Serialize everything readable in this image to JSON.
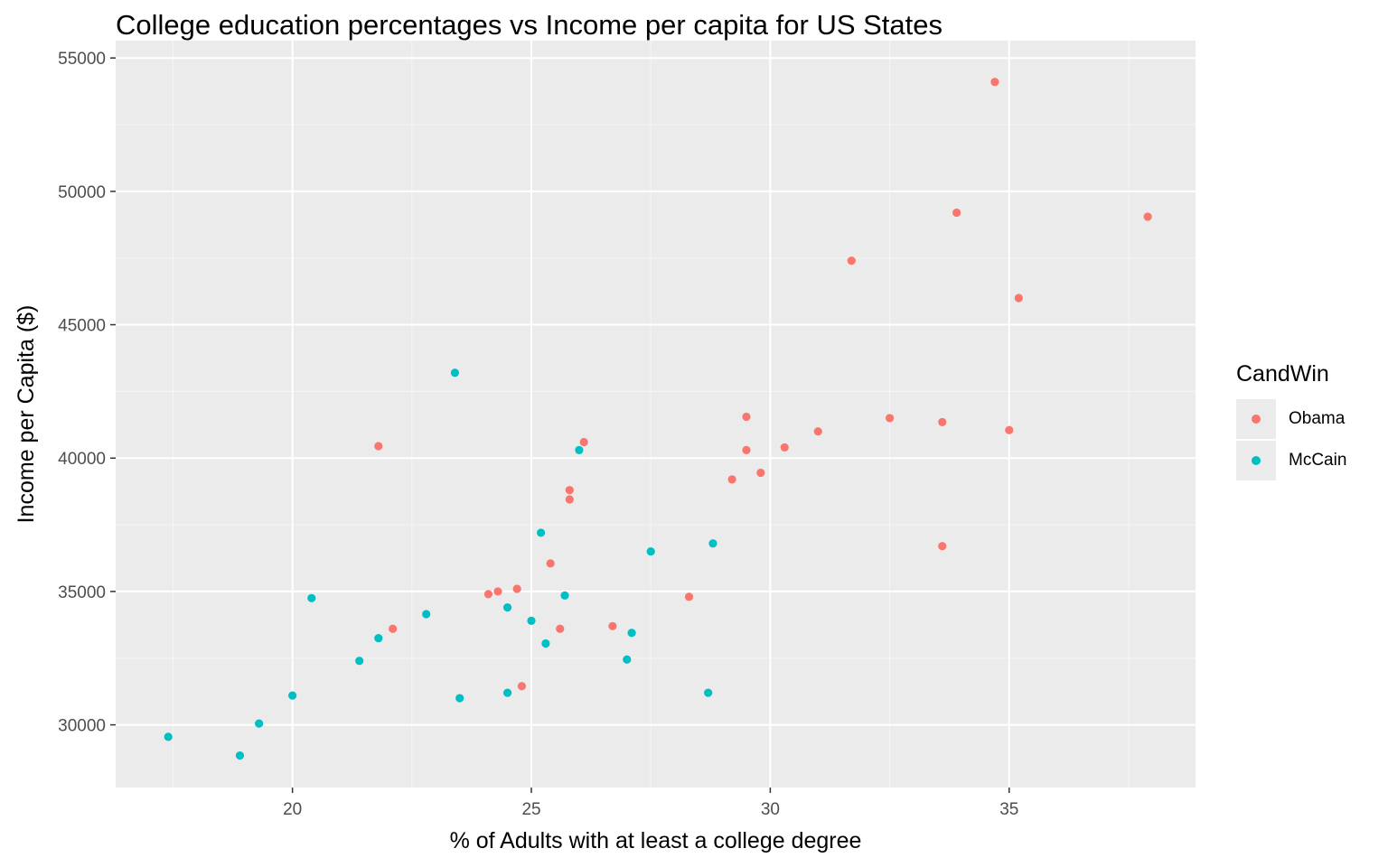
{
  "chart_data": {
    "type": "scatter",
    "title": "College education percentages vs Income per capita for US States",
    "xlabel": "% of Adults with at least a college degree",
    "ylabel": "Income per Capita ($)",
    "xlim": [
      16.3,
      38.9
    ],
    "ylim": [
      27650,
      55650
    ],
    "x_ticks": [
      20,
      25,
      30,
      35
    ],
    "y_ticks": [
      30000,
      35000,
      40000,
      45000,
      50000,
      55000
    ],
    "x_tick_labels": [
      "20",
      "25",
      "30",
      "35"
    ],
    "y_tick_labels": [
      "30000",
      "35000",
      "40000",
      "45000",
      "50000",
      "55000"
    ],
    "grid": true,
    "legend": {
      "title": "CandWin",
      "position": "right"
    },
    "series": [
      {
        "name": "Obama",
        "color": "#F8766D",
        "points": [
          {
            "x": 34.7,
            "y": 54100
          },
          {
            "x": 33.9,
            "y": 49200
          },
          {
            "x": 37.9,
            "y": 49050
          },
          {
            "x": 31.7,
            "y": 47400
          },
          {
            "x": 35.2,
            "y": 46000
          },
          {
            "x": 29.5,
            "y": 41550
          },
          {
            "x": 32.5,
            "y": 41500
          },
          {
            "x": 33.6,
            "y": 41350
          },
          {
            "x": 31.0,
            "y": 41000
          },
          {
            "x": 35.0,
            "y": 41050
          },
          {
            "x": 21.8,
            "y": 40450
          },
          {
            "x": 26.1,
            "y": 40600
          },
          {
            "x": 30.3,
            "y": 40400
          },
          {
            "x": 29.5,
            "y": 40300
          },
          {
            "x": 29.8,
            "y": 39450
          },
          {
            "x": 29.2,
            "y": 39200
          },
          {
            "x": 25.8,
            "y": 38800
          },
          {
            "x": 25.8,
            "y": 38450
          },
          {
            "x": 33.6,
            "y": 36700
          },
          {
            "x": 25.4,
            "y": 36050
          },
          {
            "x": 24.7,
            "y": 35100
          },
          {
            "x": 24.3,
            "y": 35000
          },
          {
            "x": 24.1,
            "y": 34900
          },
          {
            "x": 28.3,
            "y": 34800
          },
          {
            "x": 26.7,
            "y": 33700
          },
          {
            "x": 22.1,
            "y": 33600
          },
          {
            "x": 25.6,
            "y": 33600
          },
          {
            "x": 24.8,
            "y": 31450
          }
        ]
      },
      {
        "name": "McCain",
        "color": "#00BFC4",
        "points": [
          {
            "x": 23.4,
            "y": 43200
          },
          {
            "x": 26.0,
            "y": 40300
          },
          {
            "x": 25.2,
            "y": 37200
          },
          {
            "x": 27.5,
            "y": 36500
          },
          {
            "x": 28.8,
            "y": 36800
          },
          {
            "x": 25.7,
            "y": 34850
          },
          {
            "x": 20.4,
            "y": 34750
          },
          {
            "x": 24.5,
            "y": 34400
          },
          {
            "x": 22.8,
            "y": 34150
          },
          {
            "x": 25.0,
            "y": 33900
          },
          {
            "x": 27.1,
            "y": 33450
          },
          {
            "x": 21.8,
            "y": 33250
          },
          {
            "x": 25.3,
            "y": 33050
          },
          {
            "x": 21.4,
            "y": 32400
          },
          {
            "x": 27.0,
            "y": 32450
          },
          {
            "x": 20.0,
            "y": 31100
          },
          {
            "x": 24.5,
            "y": 31200
          },
          {
            "x": 28.7,
            "y": 31200
          },
          {
            "x": 23.5,
            "y": 31000
          },
          {
            "x": 19.3,
            "y": 30050
          },
          {
            "x": 17.4,
            "y": 29550
          },
          {
            "x": 18.9,
            "y": 28850
          }
        ]
      }
    ]
  }
}
